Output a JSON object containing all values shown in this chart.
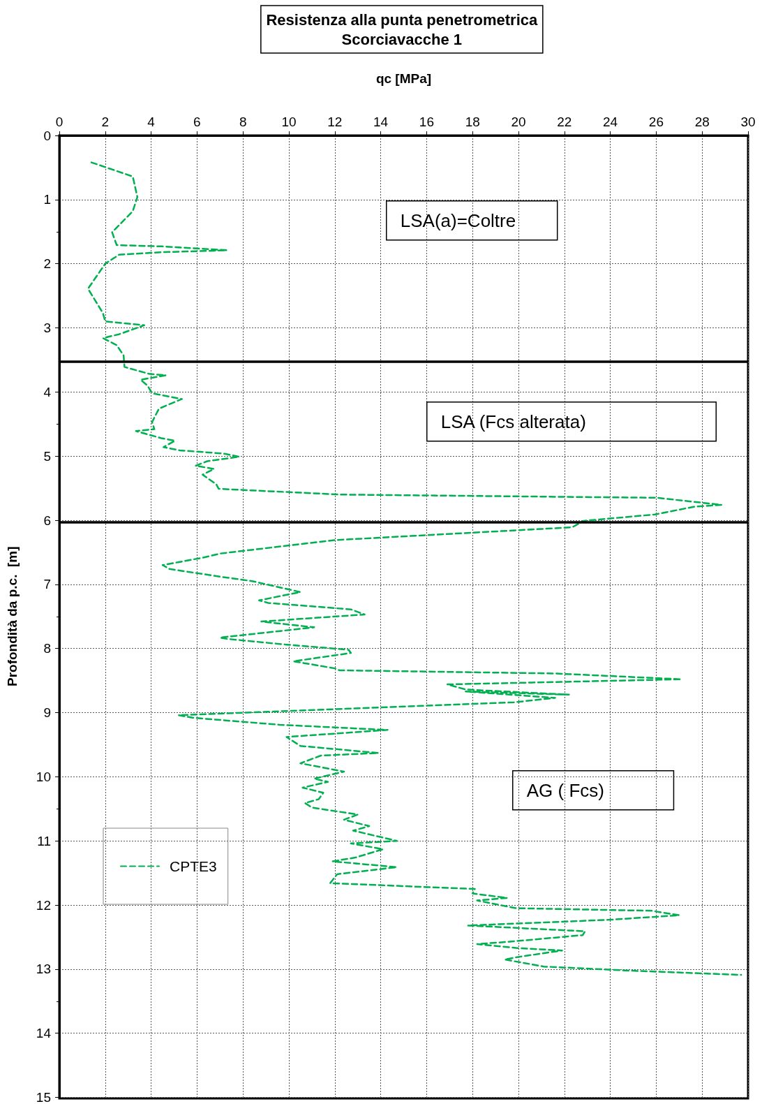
{
  "chart_data": {
    "type": "line",
    "title": "Resistenza alla punta penetrometrica\nScorciavacche 1",
    "xlabel": "qc [MPa]",
    "ylabel": "Profondità da p.c.  [m]",
    "annotations": [
      "LSA(a)=Coltre",
      "LSA (Fcs alterata)",
      "AG ( Fcs)"
    ],
    "xlim": [
      0,
      30
    ],
    "xticks": [
      0,
      2,
      4,
      6,
      8,
      10,
      12,
      14,
      16,
      18,
      20,
      22,
      24,
      26,
      28,
      30
    ],
    "ylim": [
      15,
      0
    ],
    "yticks": [
      0,
      1,
      2,
      3,
      4,
      5,
      6,
      7,
      8,
      9,
      10,
      11,
      12,
      13,
      14,
      15
    ],
    "grid": true,
    "legend": "bottom left",
    "marker": "none",
    "line_style": "dashed",
    "ref_lines": [
      {
        "axis": "y",
        "value": 3.52,
        "color": "#000000"
      },
      {
        "axis": "y",
        "value": 6.03,
        "color": "#000000"
      }
    ],
    "series": [
      {
        "name": "CPTE3",
        "color": "#00b050",
        "x": [
          1.4,
          2.3,
          3.2,
          3.4,
          3.2,
          2.6,
          2.3,
          2.5,
          4.5,
          7.3,
          4.5,
          2.6,
          2.0,
          1.25,
          1.9,
          2.0,
          3.7,
          2.6,
          1.9,
          2.5,
          2.8,
          2.84,
          3.94,
          4.64,
          3.54,
          3.84,
          4.04,
          5.34,
          4.34,
          4.04,
          4.14,
          3.34,
          4.44,
          5.04,
          4.54,
          5.24,
          7.14,
          7.84,
          6.44,
          5.94,
          6.74,
          6.24,
          6.84,
          6.94,
          12.24,
          26.04,
          28.84,
          27.64,
          25.94,
          22.84,
          22.34,
          12.0,
          7.0,
          6.3,
          4.5,
          4.8,
          7.0,
          8.4,
          10.5,
          8.7,
          9.1,
          12.7,
          13.3,
          8.8,
          11.1,
          7.0,
          7.3,
          9.9,
          12.6,
          12.7,
          10.2,
          12.0,
          12.2,
          21.6,
          27.1,
          16.9,
          17.7,
          22.2,
          17.7,
          21.6,
          19.8,
          5.2,
          5.8,
          9.6,
          14.3,
          9.9,
          10.5,
          13.9,
          11.4,
          10.5,
          12.4,
          11.1,
          11.7,
          10.6,
          11.5,
          11.3,
          10.7,
          11.0,
          13.0,
          12.4,
          13.5,
          12.8,
          14.7,
          12.7,
          14.1,
          12.9,
          11.9,
          14.7,
          12.1,
          11.8,
          18.1,
          18.0,
          19.5,
          18.2,
          19.9,
          25.8,
          27.0,
          24.0,
          17.8,
          22.9,
          22.8,
          19.7,
          18.2,
          19.9,
          21.9,
          20.0,
          19.4,
          21.1,
          24.6,
          29.7
        ],
        "values": [
          0.42,
          0.53,
          0.64,
          0.96,
          1.18,
          1.4,
          1.51,
          1.71,
          1.73,
          1.79,
          1.82,
          1.86,
          2.0,
          2.39,
          2.77,
          2.9,
          2.96,
          3.1,
          3.16,
          3.27,
          3.43,
          3.61,
          3.72,
          3.74,
          3.81,
          3.9,
          4.02,
          4.11,
          4.26,
          4.47,
          4.58,
          4.61,
          4.72,
          4.76,
          4.86,
          4.91,
          4.96,
          5.01,
          5.08,
          5.15,
          5.2,
          5.29,
          5.44,
          5.51,
          5.6,
          5.65,
          5.76,
          5.79,
          5.91,
          6.01,
          6.11,
          6.31,
          6.52,
          6.58,
          6.7,
          6.76,
          6.88,
          6.95,
          7.12,
          7.25,
          7.29,
          7.39,
          7.47,
          7.58,
          7.67,
          7.83,
          7.85,
          7.94,
          8.02,
          8.07,
          8.2,
          8.31,
          8.34,
          8.39,
          8.48,
          8.56,
          8.64,
          8.72,
          8.67,
          8.77,
          8.84,
          9.04,
          9.08,
          9.19,
          9.27,
          9.38,
          9.52,
          9.63,
          9.67,
          9.79,
          9.92,
          10.03,
          10.08,
          10.17,
          10.25,
          10.35,
          10.41,
          10.48,
          10.59,
          10.67,
          10.77,
          10.84,
          11.0,
          11.04,
          11.13,
          11.26,
          11.32,
          11.41,
          11.52,
          11.66,
          11.75,
          11.82,
          11.89,
          11.93,
          12.05,
          12.09,
          12.16,
          12.23,
          12.32,
          12.41,
          12.47,
          12.57,
          12.61,
          12.67,
          12.71,
          12.81,
          12.85,
          12.96,
          13.02,
          13.09
        ]
      }
    ]
  }
}
